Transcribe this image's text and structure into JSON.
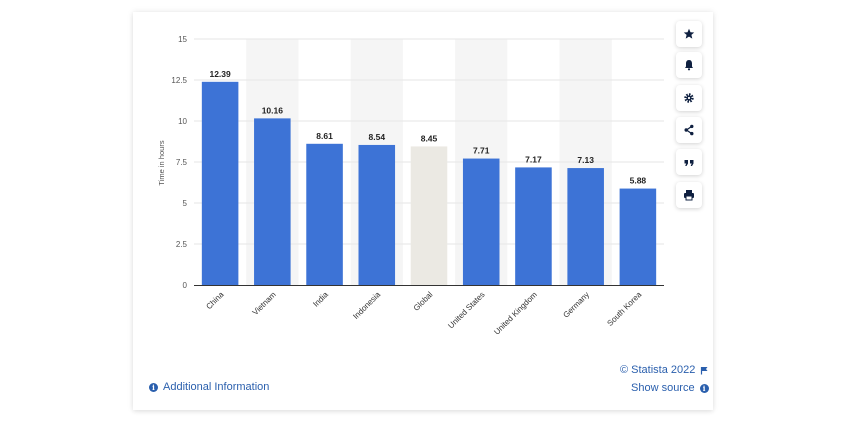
{
  "chart_data": {
    "type": "bar",
    "categories": [
      "China",
      "Vietnam",
      "India",
      "Indonesia",
      "Global",
      "United States",
      "United Kingdom",
      "Germany",
      "South Korea"
    ],
    "values": [
      12.39,
      10.16,
      8.61,
      8.54,
      8.45,
      7.71,
      7.17,
      7.13,
      5.88
    ],
    "value_labels": [
      "12.39",
      "10.16",
      "8.61",
      "8.54",
      "8.45",
      "7.71",
      "7.17",
      "7.13",
      "5.88"
    ],
    "highlight_index": 4,
    "ylabel": "Time in hours",
    "ylim": [
      0,
      15
    ],
    "yticks": [
      0,
      2.5,
      5,
      7.5,
      10,
      12.5,
      15
    ],
    "ytick_labels": [
      "0",
      "2.5",
      "5",
      "7.5",
      "10",
      "12.5",
      "15"
    ],
    "grid": true,
    "colors": {
      "bar": "#3d73d6",
      "highlight": "#ebe9e3",
      "band": "#f5f5f5",
      "grid": "#e6e6e6"
    }
  },
  "toolbar": {
    "icons": [
      "star-icon",
      "bell-icon",
      "gear-icon",
      "share-icon",
      "quote-icon",
      "print-icon"
    ]
  },
  "footer": {
    "copyright": "© Statista 2022",
    "additional_info": "Additional Information",
    "show_source": "Show source"
  }
}
